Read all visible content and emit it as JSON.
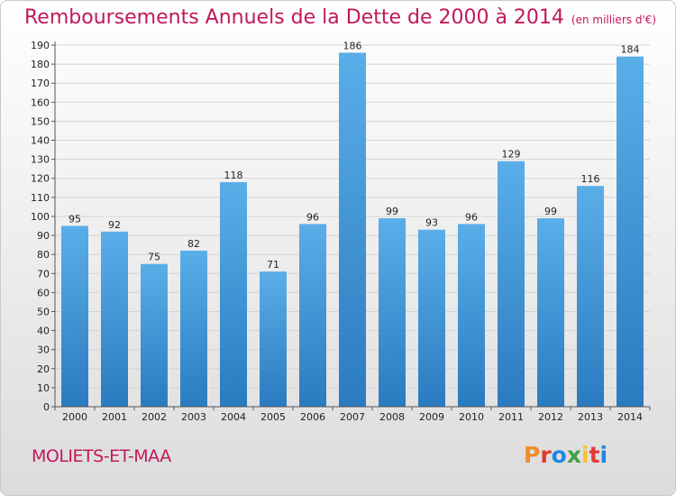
{
  "header": {
    "title": "Remboursements Annuels de la Dette de 2000 à 2014",
    "unit": "(en milliers d'€)"
  },
  "footer": {
    "commune": "MOLIETS-ET-MAA",
    "logo_letters": [
      "P",
      "r",
      "o",
      "x",
      "i",
      "t",
      "i"
    ],
    "logo_colors": [
      "#f28c28",
      "#e53935",
      "#1e88e5",
      "#43a047",
      "#fbc02d",
      "#e53935",
      "#1e88e5"
    ]
  },
  "chart_data": {
    "type": "bar",
    "categories": [
      "2000",
      "2001",
      "2002",
      "2003",
      "2004",
      "2005",
      "2006",
      "2007",
      "2008",
      "2009",
      "2010",
      "2011",
      "2012",
      "2013",
      "2014"
    ],
    "values": [
      95,
      92,
      75,
      82,
      118,
      71,
      96,
      186,
      99,
      93,
      96,
      129,
      99,
      116,
      184
    ],
    "ylim": [
      0,
      190
    ],
    "ytick_step": 10,
    "grid": true,
    "bar_color_top": "#5aaee8",
    "bar_color_bottom": "#2a7bc0"
  }
}
